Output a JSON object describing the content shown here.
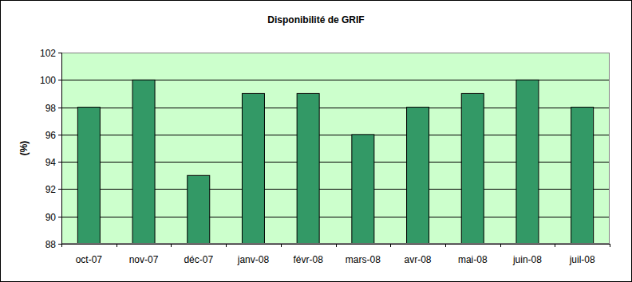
{
  "chart_data": {
    "type": "bar",
    "title": "Disponibilité de GRIF",
    "y_label": "(%)",
    "categories": [
      "oct-07",
      "nov-07",
      "déc-07",
      "janv-08",
      "févr-08",
      "mars-08",
      "avr-08",
      "mai-08",
      "juin-08",
      "juil-08"
    ],
    "values": [
      98,
      100,
      93,
      99,
      99,
      96,
      98,
      99,
      100,
      98
    ],
    "color": "#339966",
    "ylim": [
      88,
      102
    ],
    "yticks": [
      88,
      90,
      92,
      94,
      96,
      98,
      100,
      102
    ],
    "grid": true
  }
}
